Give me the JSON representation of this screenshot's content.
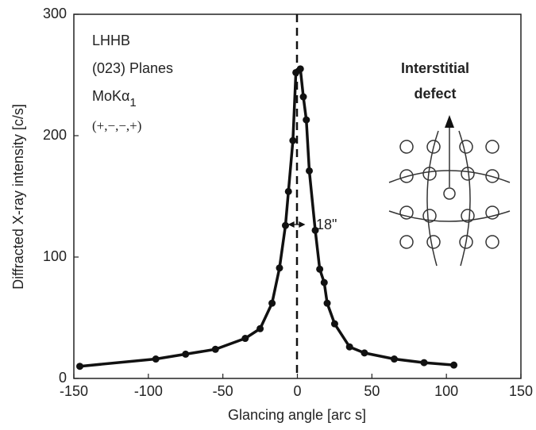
{
  "chart_data": {
    "type": "line",
    "xlabel": "Glancing angle [arc s]",
    "ylabel": "Diffracted X-ray intensity [c/s]",
    "x": [
      -146,
      -95,
      -75,
      -55,
      -35,
      -25,
      -17,
      -12,
      -8,
      -6,
      -3,
      -1,
      2,
      4,
      6,
      8,
      12,
      15,
      18,
      20,
      25,
      35,
      45,
      65,
      85,
      105
    ],
    "series": [
      {
        "color": "#111111",
        "values": [
          10,
          16,
          20,
          24,
          33,
          41,
          62,
          91,
          126,
          154,
          196,
          252,
          255,
          232,
          213,
          171,
          122,
          90,
          79,
          62,
          45,
          26,
          21,
          16,
          13,
          11
        ]
      }
    ],
    "xlim": [
      -150,
      150
    ],
    "xticks": [
      -150,
      -100,
      -50,
      0,
      50,
      100,
      150
    ],
    "ylim": [
      0,
      300
    ],
    "yticks": [
      0,
      100,
      200,
      300
    ],
    "annotations": [
      "LHHB",
      "(023) Planes"
    ],
    "radiation": {
      "text": "MoKα",
      "sub": "1"
    },
    "signs": "(+,−,−,+)",
    "fwhm_label": "18\"",
    "defect_title": [
      "Interstitial",
      "defect"
    ]
  }
}
